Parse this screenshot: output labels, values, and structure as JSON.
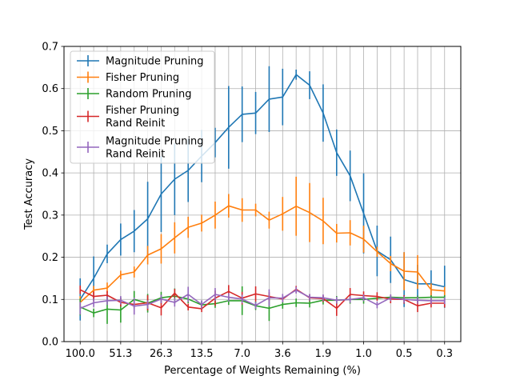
{
  "chart_data": {
    "type": "line",
    "title": "",
    "xlabel": "Percentage of Weights Remaining (%)",
    "ylabel": "Test Accuracy",
    "grid": true,
    "legend_position": "top-left",
    "ylim": [
      0.0,
      0.7
    ],
    "y_ticks": [
      "0.0",
      "0.1",
      "0.2",
      "0.3",
      "0.4",
      "0.5",
      "0.6",
      "0.7"
    ],
    "x_index": [
      0,
      1,
      2,
      3,
      4,
      5,
      6,
      7,
      8,
      9,
      10,
      11,
      12,
      13,
      14,
      15,
      16,
      17,
      18,
      19,
      20,
      21,
      22,
      23,
      24,
      25
    ],
    "x_ticks": [
      {
        "index": 0,
        "label": "100.0"
      },
      {
        "index": 3,
        "label": "51.3"
      },
      {
        "index": 6,
        "label": "26.3"
      },
      {
        "index": 9,
        "label": "13.5"
      },
      {
        "index": 12,
        "label": "7.0"
      },
      {
        "index": 15,
        "label": "3.6"
      },
      {
        "index": 18,
        "label": "1.9"
      },
      {
        "index": 21,
        "label": "1.0"
      },
      {
        "index": 24,
        "label": "0.5"
      },
      {
        "index": 27,
        "label": "0.3"
      }
    ],
    "series": [
      {
        "name": "Magnitude Pruning",
        "color": "#1f77b4",
        "x": [
          0,
          1,
          2,
          3,
          4,
          5,
          6,
          7,
          8,
          9,
          10,
          11,
          12,
          13,
          14,
          15,
          16,
          17,
          18,
          19,
          20,
          21,
          22,
          23,
          24,
          25,
          26,
          27
        ],
        "values": [
          0.1,
          0.15,
          0.208,
          0.242,
          0.262,
          0.291,
          0.35,
          0.385,
          0.406,
          0.44,
          0.472,
          0.508,
          0.539,
          0.542,
          0.575,
          0.58,
          0.633,
          0.608,
          0.542,
          0.448,
          0.393,
          0.304,
          0.215,
          0.194,
          0.147,
          0.137,
          0.137,
          0.13
        ],
        "errors": [
          0.05,
          0.052,
          0.022,
          0.038,
          0.05,
          0.088,
          0.09,
          0.085,
          0.075,
          0.062,
          0.035,
          0.098,
          0.066,
          0.05,
          0.078,
          0.067,
          0.012,
          0.033,
          0.068,
          0.055,
          0.06,
          0.095,
          0.06,
          0.055,
          0.065,
          0.045,
          0.032,
          0.05
        ]
      },
      {
        "name": "Fisher Pruning",
        "color": "#ff7f0e",
        "x": [
          0,
          1,
          2,
          3,
          4,
          5,
          6,
          7,
          8,
          9,
          10,
          11,
          12,
          13,
          14,
          15,
          16,
          17,
          18,
          19,
          20,
          21,
          22,
          23,
          24,
          25,
          26,
          27
        ],
        "values": [
          0.093,
          0.122,
          0.127,
          0.158,
          0.165,
          0.205,
          0.22,
          0.246,
          0.271,
          0.281,
          0.3,
          0.322,
          0.312,
          0.312,
          0.288,
          0.303,
          0.321,
          0.306,
          0.286,
          0.257,
          0.258,
          0.243,
          0.213,
          0.185,
          0.167,
          0.165,
          0.123,
          0.12
        ],
        "errors": [
          0.015,
          0.01,
          0.013,
          0.01,
          0.013,
          0.022,
          0.035,
          0.037,
          0.025,
          0.02,
          0.032,
          0.028,
          0.028,
          0.015,
          0.02,
          0.04,
          0.07,
          0.07,
          0.055,
          0.022,
          0.03,
          0.032,
          0.012,
          0.018,
          0.045,
          0.04,
          0.015,
          0.01
        ]
      },
      {
        "name": "Random Pruning",
        "color": "#2ca02c",
        "x": [
          0,
          1,
          2,
          3,
          4,
          5,
          6,
          7,
          8,
          9,
          10,
          11,
          12,
          13,
          14,
          15,
          16,
          17,
          18,
          19,
          20,
          21,
          22,
          23,
          24,
          25,
          26,
          27
        ],
        "values": [
          0.082,
          0.068,
          0.077,
          0.075,
          0.1,
          0.091,
          0.104,
          0.108,
          0.101,
          0.087,
          0.09,
          0.097,
          0.097,
          0.085,
          0.079,
          0.088,
          0.092,
          0.091,
          0.098,
          0.098,
          0.1,
          0.1,
          0.103,
          0.105,
          0.104,
          0.104,
          0.105,
          0.105
        ],
        "errors": [
          0.02,
          0.01,
          0.035,
          0.03,
          0.02,
          0.022,
          0.014,
          0.018,
          0.01,
          0.01,
          0.01,
          0.01,
          0.034,
          0.01,
          0.03,
          0.01,
          0.01,
          0.01,
          0.01,
          0.01,
          0.01,
          0.01,
          0.005,
          0.005,
          0.005,
          0.005,
          0.005,
          0.005
        ]
      },
      {
        "name": "Fisher Pruning\n Rand Reinit",
        "color": "#d62728",
        "x": [
          0,
          1,
          2,
          3,
          4,
          5,
          6,
          7,
          8,
          9,
          10,
          11,
          12,
          13,
          14,
          15,
          16,
          17,
          18,
          19,
          20,
          21,
          22,
          23,
          24,
          25,
          26,
          27
        ],
        "values": [
          0.123,
          0.107,
          0.11,
          0.093,
          0.088,
          0.092,
          0.08,
          0.115,
          0.082,
          0.078,
          0.103,
          0.119,
          0.103,
          0.113,
          0.107,
          0.101,
          0.124,
          0.104,
          0.102,
          0.079,
          0.112,
          0.109,
          0.107,
          0.101,
          0.1,
          0.085,
          0.091,
          0.091
        ],
        "errors": [
          0.01,
          0.012,
          0.01,
          0.01,
          0.01,
          0.018,
          0.018,
          0.01,
          0.008,
          0.008,
          0.018,
          0.015,
          0.015,
          0.018,
          0.01,
          0.008,
          0.008,
          0.008,
          0.008,
          0.018,
          0.015,
          0.01,
          0.01,
          0.01,
          0.01,
          0.015,
          0.01,
          0.01
        ]
      },
      {
        "name": "Magnitude Pruning\n Rand Reinit",
        "color": "#9467bd",
        "x": [
          0,
          1,
          2,
          3,
          4,
          5,
          6,
          7,
          8,
          9,
          10,
          11,
          12,
          13,
          14,
          15,
          16,
          17,
          18,
          19,
          20,
          21,
          22,
          23,
          24,
          25,
          26,
          27
        ],
        "values": [
          0.079,
          0.092,
          0.097,
          0.098,
          0.084,
          0.088,
          0.101,
          0.093,
          0.112,
          0.088,
          0.112,
          0.105,
          0.101,
          0.086,
          0.104,
          0.103,
          0.122,
          0.105,
          0.104,
          0.098,
          0.1,
          0.104,
          0.087,
          0.104,
          0.1,
          0.098,
          0.097,
          0.097
        ],
        "errors": [
          0.015,
          0.01,
          0.01,
          0.01,
          0.02,
          0.01,
          0.01,
          0.01,
          0.018,
          0.01,
          0.015,
          0.01,
          0.01,
          0.008,
          0.02,
          0.01,
          0.008,
          0.008,
          0.008,
          0.008,
          0.008,
          0.008,
          0.008,
          0.008,
          0.008,
          0.008,
          0.008,
          0.008
        ]
      }
    ]
  }
}
